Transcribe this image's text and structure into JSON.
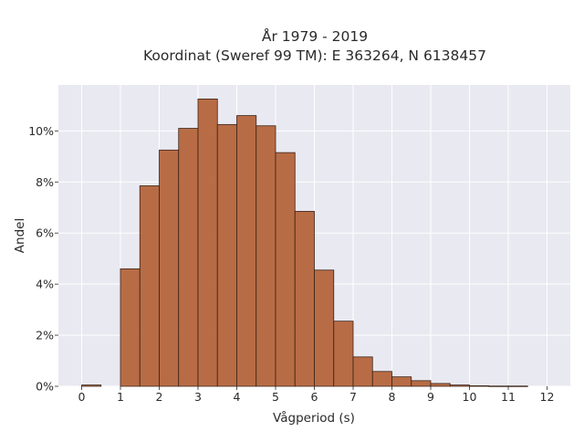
{
  "chart_data": {
    "type": "bar",
    "title": "År 1979 - 2019",
    "subtitle": "Koordinat (Sweref 99 TM): E 363264, N 6138457",
    "xlabel": "Vågperiod (s)",
    "ylabel": "Andel",
    "xlim": [
      -0.6,
      12.6
    ],
    "ylim": [
      0,
      11.8
    ],
    "bin_width": 0.5,
    "x_ticks": [
      0,
      1,
      2,
      3,
      4,
      5,
      6,
      7,
      8,
      9,
      10,
      11,
      12
    ],
    "x_tick_labels": [
      "0",
      "1",
      "2",
      "3",
      "4",
      "5",
      "6",
      "7",
      "8",
      "9",
      "10",
      "11",
      "12"
    ],
    "y_ticks": [
      0,
      2,
      4,
      6,
      8,
      10
    ],
    "y_tick_labels": [
      "0%",
      "2%",
      "4%",
      "6%",
      "8%",
      "10%"
    ],
    "grid": true,
    "bar_color": "#b5653b",
    "bar_edge_color": "#3a2418",
    "plot_background": "#e9e9f1",
    "bins": [
      {
        "start": 0.0,
        "value": 0.05
      },
      {
        "start": 1.0,
        "value": 4.6
      },
      {
        "start": 1.5,
        "value": 7.85
      },
      {
        "start": 2.0,
        "value": 9.25
      },
      {
        "start": 2.5,
        "value": 10.1
      },
      {
        "start": 3.0,
        "value": 11.25
      },
      {
        "start": 3.5,
        "value": 10.25
      },
      {
        "start": 4.0,
        "value": 10.6
      },
      {
        "start": 4.5,
        "value": 10.2
      },
      {
        "start": 5.0,
        "value": 9.15
      },
      {
        "start": 5.5,
        "value": 6.85
      },
      {
        "start": 6.0,
        "value": 4.55
      },
      {
        "start": 6.5,
        "value": 2.55
      },
      {
        "start": 7.0,
        "value": 1.15
      },
      {
        "start": 7.5,
        "value": 0.58
      },
      {
        "start": 8.0,
        "value": 0.37
      },
      {
        "start": 8.5,
        "value": 0.22
      },
      {
        "start": 9.0,
        "value": 0.11
      },
      {
        "start": 9.5,
        "value": 0.05
      },
      {
        "start": 10.0,
        "value": 0.02
      },
      {
        "start": 10.5,
        "value": 0.01
      },
      {
        "start": 11.0,
        "value": 0.01
      }
    ]
  }
}
